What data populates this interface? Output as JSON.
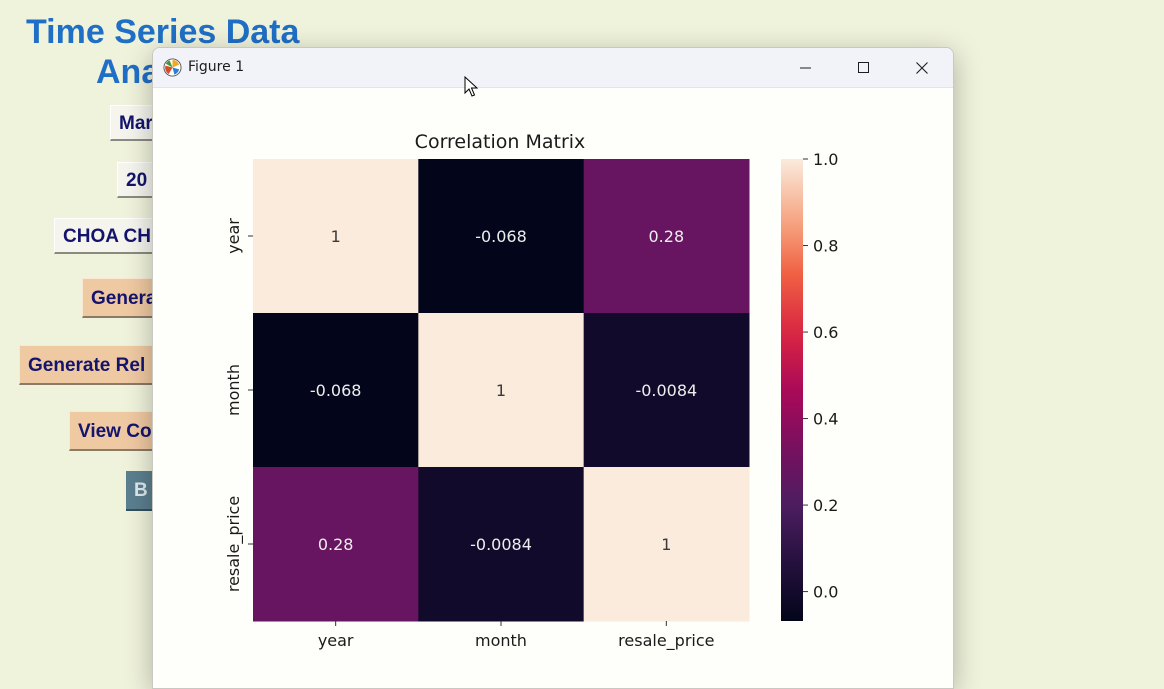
{
  "app": {
    "title_line1": "Time Series Data",
    "title_line2": "Ana",
    "buttons": [
      {
        "label": "Mar"
      },
      {
        "label": "20"
      },
      {
        "label": "CHOA CH"
      },
      {
        "label": "Genera"
      },
      {
        "label": "Generate Rel"
      },
      {
        "label": "View Co"
      },
      {
        "label": "B"
      }
    ]
  },
  "window": {
    "title": "Figure 1",
    "controls": [
      "minimize-icon",
      "maximize-icon",
      "close-icon"
    ]
  },
  "colors": {
    "background": "#f0f3dc",
    "app_title": "#1f6fc6",
    "button_tan": "#efc9a2",
    "button_slate": "#5b7f8f",
    "heatmap_high": "#f6e7dc",
    "heatmap_low": "#03041c"
  },
  "chart_data": {
    "type": "heatmap",
    "title": "Correlation Matrix",
    "x_labels": [
      "year",
      "month",
      "resale_price"
    ],
    "y_labels": [
      "year",
      "month",
      "resale_price"
    ],
    "values": [
      [
        1,
        -0.068,
        0.28
      ],
      [
        -0.068,
        1,
        -0.0084
      ],
      [
        0.28,
        -0.0084,
        1
      ]
    ],
    "annotations": [
      [
        "1",
        "-0.068",
        "0.28"
      ],
      [
        "-0.068",
        "1",
        "-0.0084"
      ],
      [
        "0.28",
        "-0.0084",
        "1"
      ]
    ],
    "colorbar": {
      "ticks": [
        "0.0",
        "0.2",
        "0.4",
        "0.6",
        "0.8",
        "1.0"
      ],
      "range": [
        -0.068,
        1.0
      ],
      "colormap": "rocket"
    }
  }
}
